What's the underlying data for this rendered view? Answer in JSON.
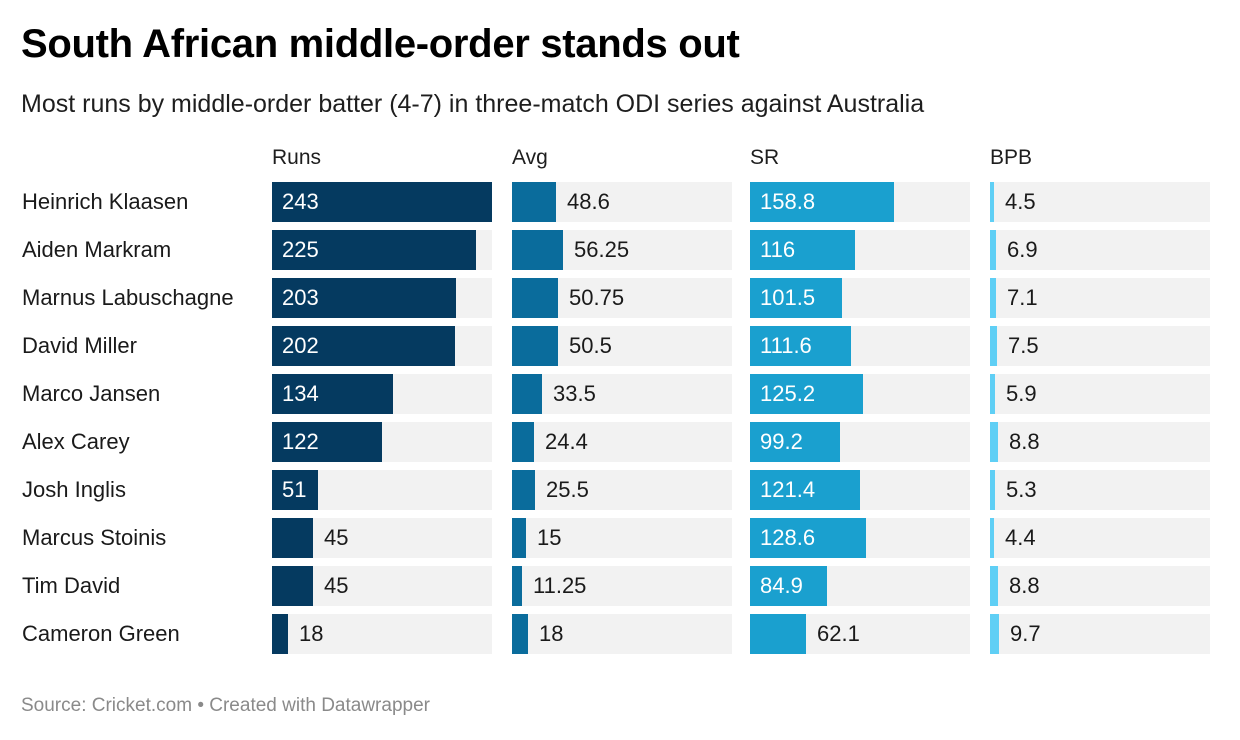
{
  "title": "South African middle-order stands out",
  "subtitle": "Most runs by middle-order batter (4-7) in three-match ODI series against Australia",
  "footer": "Source: Cricket.com • Created with Datawrapper",
  "chart_data": {
    "type": "bar",
    "orientation": "horizontal",
    "title": "South African middle-order stands out",
    "subtitle": "Most runs by middle-order batter (4-7) in three-match ODI series against Australia",
    "categories": [
      "Heinrich Klaasen",
      "Aiden Markram",
      "Marnus Labuschagne",
      "David Miller",
      "Marco Jansen",
      "Alex Carey",
      "Josh Inglis",
      "Marcus Stoinis",
      "Tim David",
      "Cameron Green"
    ],
    "series": [
      {
        "name": "Runs",
        "color": "#053a60",
        "max": 243,
        "values": [
          243,
          225,
          203,
          202,
          134,
          122,
          51,
          45,
          45,
          18
        ],
        "labels": [
          "243",
          "225",
          "203",
          "202",
          "134",
          "122",
          "51",
          "45",
          "45",
          "18"
        ]
      },
      {
        "name": "Avg",
        "color": "#0a6c9c",
        "max": 243,
        "values": [
          48.6,
          56.25,
          50.75,
          50.5,
          33.5,
          24.4,
          25.5,
          15,
          11.25,
          18
        ],
        "labels": [
          "48.6",
          "56.25",
          "50.75",
          "50.5",
          "33.5",
          "24.4",
          "25.5",
          "15",
          "11.25",
          "18"
        ]
      },
      {
        "name": "SR",
        "color": "#1aa0cf",
        "max": 243,
        "values": [
          158.8,
          116,
          101.5,
          111.6,
          125.2,
          99.2,
          121.4,
          128.6,
          84.9,
          62.1
        ],
        "labels": [
          "158.8",
          "116",
          "101.5",
          "111.6",
          "125.2",
          "99.2",
          "121.4",
          "128.6",
          "84.9",
          "62.1"
        ]
      },
      {
        "name": "BPB",
        "color": "#5fcff5",
        "max": 243,
        "values": [
          4.5,
          6.9,
          7.1,
          7.5,
          5.9,
          8.8,
          5.3,
          4.4,
          8.8,
          9.7
        ],
        "labels": [
          "4.5",
          "6.9",
          "7.1",
          "7.5",
          "5.9",
          "8.8",
          "5.3",
          "4.4",
          "8.8",
          "9.7"
        ]
      }
    ]
  }
}
